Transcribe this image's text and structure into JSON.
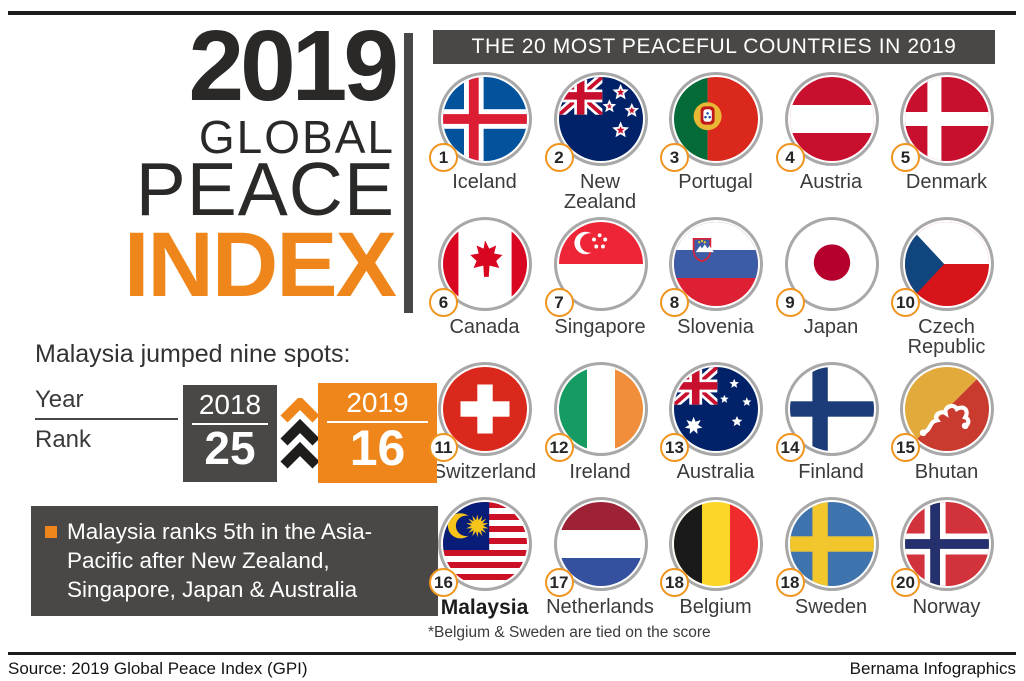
{
  "infographic": {
    "title_lines": [
      "2019",
      "GLOBAL",
      "PEACE",
      "INDEX"
    ]
  },
  "list": {
    "header": "THE 20 MOST PEACEFUL COUNTRIES IN 2019",
    "footnote": "*Belgium & Sweden are tied on the score"
  },
  "countries": [
    {
      "rank": "1",
      "name": "Iceland",
      "flag": "iceland"
    },
    {
      "rank": "2",
      "name": "New\nZealand",
      "flag": "new-zealand"
    },
    {
      "rank": "3",
      "name": "Portugal",
      "flag": "portugal"
    },
    {
      "rank": "4",
      "name": "Austria",
      "flag": "austria"
    },
    {
      "rank": "5",
      "name": "Denmark",
      "flag": "denmark"
    },
    {
      "rank": "6",
      "name": "Canada",
      "flag": "canada"
    },
    {
      "rank": "7",
      "name": "Singapore",
      "flag": "singapore"
    },
    {
      "rank": "8",
      "name": "Slovenia",
      "flag": "slovenia"
    },
    {
      "rank": "9",
      "name": "Japan",
      "flag": "japan"
    },
    {
      "rank": "10",
      "name": "Czech\nRepublic",
      "flag": "czech-republic"
    },
    {
      "rank": "11",
      "name": "Switzerland",
      "flag": "switzerland"
    },
    {
      "rank": "12",
      "name": "Ireland",
      "flag": "ireland"
    },
    {
      "rank": "13",
      "name": "Australia",
      "flag": "australia"
    },
    {
      "rank": "14",
      "name": "Finland",
      "flag": "finland"
    },
    {
      "rank": "15",
      "name": "Bhutan",
      "flag": "bhutan"
    },
    {
      "rank": "16",
      "name": "Malaysia",
      "flag": "malaysia",
      "bold": true
    },
    {
      "rank": "17",
      "name": "Netherlands",
      "flag": "netherlands"
    },
    {
      "rank": "18",
      "name": "Belgium",
      "flag": "belgium"
    },
    {
      "rank": "18",
      "name": "Sweden",
      "flag": "sweden"
    },
    {
      "rank": "20",
      "name": "Norway",
      "flag": "norway"
    }
  ],
  "jump": {
    "heading": "Malaysia jumped nine spots:",
    "year_label": "Year",
    "rank_label": "Rank",
    "from_year": "2018",
    "from_rank": "25",
    "to_year": "2019",
    "to_rank": "16"
  },
  "fact": {
    "text": "Malaysia ranks 5th in the Asia-\nPacific after New Zealand,\nSingapore, Japan & Australia"
  },
  "footer": {
    "source": "Source: 2019 Global Peace Index (GPI)",
    "credit": "Bernama Infographics"
  },
  "colors": {
    "orange": "#EE861B",
    "dark_gray": "#4A4846"
  },
  "chart_data": {
    "type": "table",
    "title": "THE 20 MOST PEACEFUL COUNTRIES IN 2019",
    "columns": [
      "Rank",
      "Country"
    ],
    "rows": [
      [
        1,
        "Iceland"
      ],
      [
        2,
        "New Zealand"
      ],
      [
        3,
        "Portugal"
      ],
      [
        4,
        "Austria"
      ],
      [
        5,
        "Denmark"
      ],
      [
        6,
        "Canada"
      ],
      [
        7,
        "Singapore"
      ],
      [
        8,
        "Slovenia"
      ],
      [
        9,
        "Japan"
      ],
      [
        10,
        "Czech Republic"
      ],
      [
        11,
        "Switzerland"
      ],
      [
        12,
        "Ireland"
      ],
      [
        13,
        "Australia"
      ],
      [
        14,
        "Finland"
      ],
      [
        15,
        "Bhutan"
      ],
      [
        16,
        "Malaysia"
      ],
      [
        17,
        "Netherlands"
      ],
      [
        18,
        "Belgium"
      ],
      [
        18,
        "Sweden"
      ],
      [
        20,
        "Norway"
      ]
    ],
    "annotations": {
      "malaysia_rank_2018": 25,
      "malaysia_rank_2019": 16,
      "tie_note": "*Belgium & Sweden are tied on the score",
      "fact": "Malaysia ranks 5th in the Asia-Pacific after New Zealand, Singapore, Japan & Australia"
    }
  }
}
